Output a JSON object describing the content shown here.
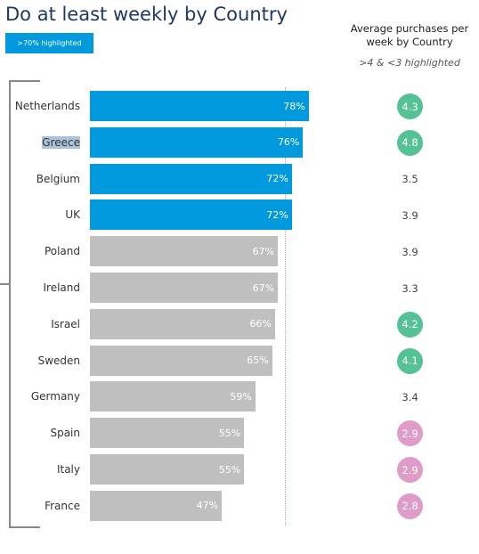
{
  "title": "Do at least weekly by Country",
  "badge": ">70% highlighted",
  "right_panel": {
    "title": "Average purchases per week by Country",
    "subtitle": ">4 & <3 highlighted"
  },
  "colors": {
    "highlight_bar": "#0099dd",
    "normal_bar": "#bfbfbf",
    "avg_high": "#55c295",
    "avg_low": "#df9cc8"
  },
  "chart_data": {
    "type": "bar",
    "orientation": "horizontal",
    "title": "Do at least weekly by Country",
    "categories": [
      "Netherlands",
      "Greece",
      "Belgium",
      "UK",
      "Poland",
      "Ireland",
      "Israel",
      "Sweden",
      "Germany",
      "Spain",
      "Italy",
      "France"
    ],
    "values": [
      78,
      76,
      72,
      72,
      67,
      67,
      66,
      65,
      59,
      55,
      55,
      47
    ],
    "labels": [
      "78%",
      "76%",
      "72%",
      "72%",
      "67%",
      "67%",
      "66%",
      "65%",
      "59%",
      "55%",
      "55%",
      "47%"
    ],
    "highlight_threshold": 70,
    "average_purchases": [
      "4.3",
      "4.8",
      "3.5",
      "3.9",
      "3.9",
      "3.3",
      "4.2",
      "4.1",
      "3.4",
      "2.9",
      "2.9",
      "2.8"
    ],
    "avg_high_threshold": 4,
    "avg_low_threshold": 3,
    "selected_category": "Greece"
  }
}
